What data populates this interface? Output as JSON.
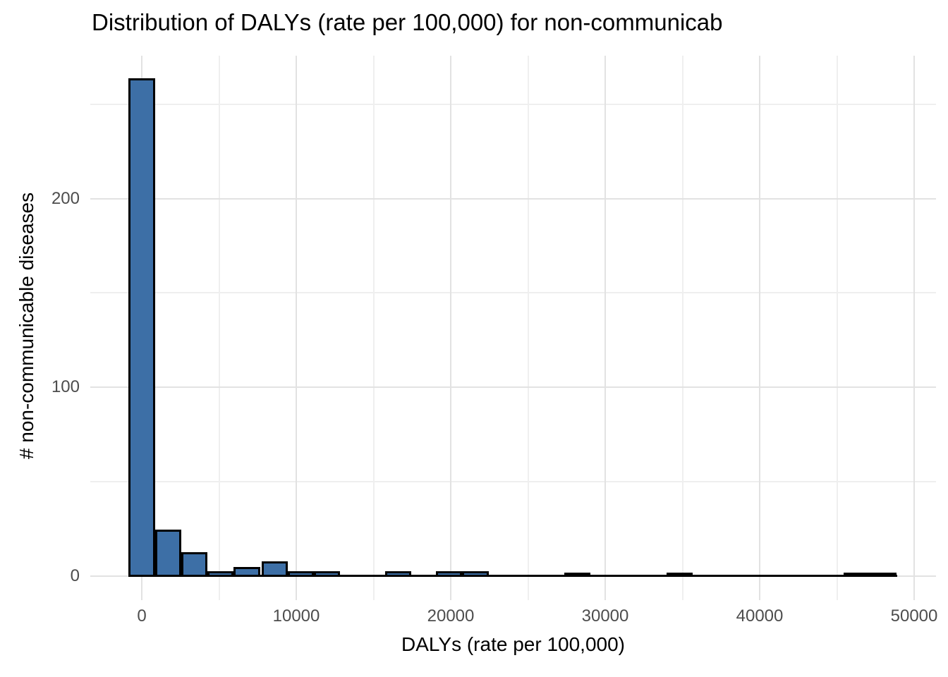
{
  "chart_data": {
    "type": "bar",
    "subtype": "histogram",
    "title": "Distribution of DALYs (rate per 100,000) for non-communicab",
    "xlabel": "DALYs (rate per 100,000)",
    "ylabel": "# non-communicable diseases",
    "x_ticks": [
      0,
      10000,
      20000,
      30000,
      40000,
      50000
    ],
    "x_minor_ticks": [
      5000,
      15000,
      25000,
      35000,
      45000
    ],
    "y_ticks": [
      0,
      100,
      200
    ],
    "y_minor_ticks": [
      50,
      150,
      250
    ],
    "xlim": [
      -3300,
      51400
    ],
    "ylim": [
      0,
      276
    ],
    "binwidth": 1700,
    "bins": [
      {
        "x": 0,
        "count": 263
      },
      {
        "x": 1700,
        "count": 24
      },
      {
        "x": 3400,
        "count": 12
      },
      {
        "x": 5100,
        "count": 2
      },
      {
        "x": 6800,
        "count": 4
      },
      {
        "x": 8600,
        "count": 7
      },
      {
        "x": 10300,
        "count": 2
      },
      {
        "x": 12000,
        "count": 2
      },
      {
        "x": 16600,
        "count": 2
      },
      {
        "x": 19900,
        "count": 2
      },
      {
        "x": 21600,
        "count": 2
      },
      {
        "x": 28200,
        "count": 1
      },
      {
        "x": 34800,
        "count": 1
      },
      {
        "x": 46300,
        "count": 1
      },
      {
        "x": 48000,
        "count": 1
      }
    ],
    "zero_count_bin_span": {
      "from": -850,
      "to": 48900
    },
    "legend": "none",
    "grid": "on",
    "colors": {
      "bar_fill": "#3D6FA6",
      "bar_stroke": "#000000",
      "grid_major": "#e2e2e2",
      "grid_minor": "#efefef",
      "tick_text": "#4d4d4d",
      "title_text": "#000000",
      "background": "#ffffff"
    }
  }
}
